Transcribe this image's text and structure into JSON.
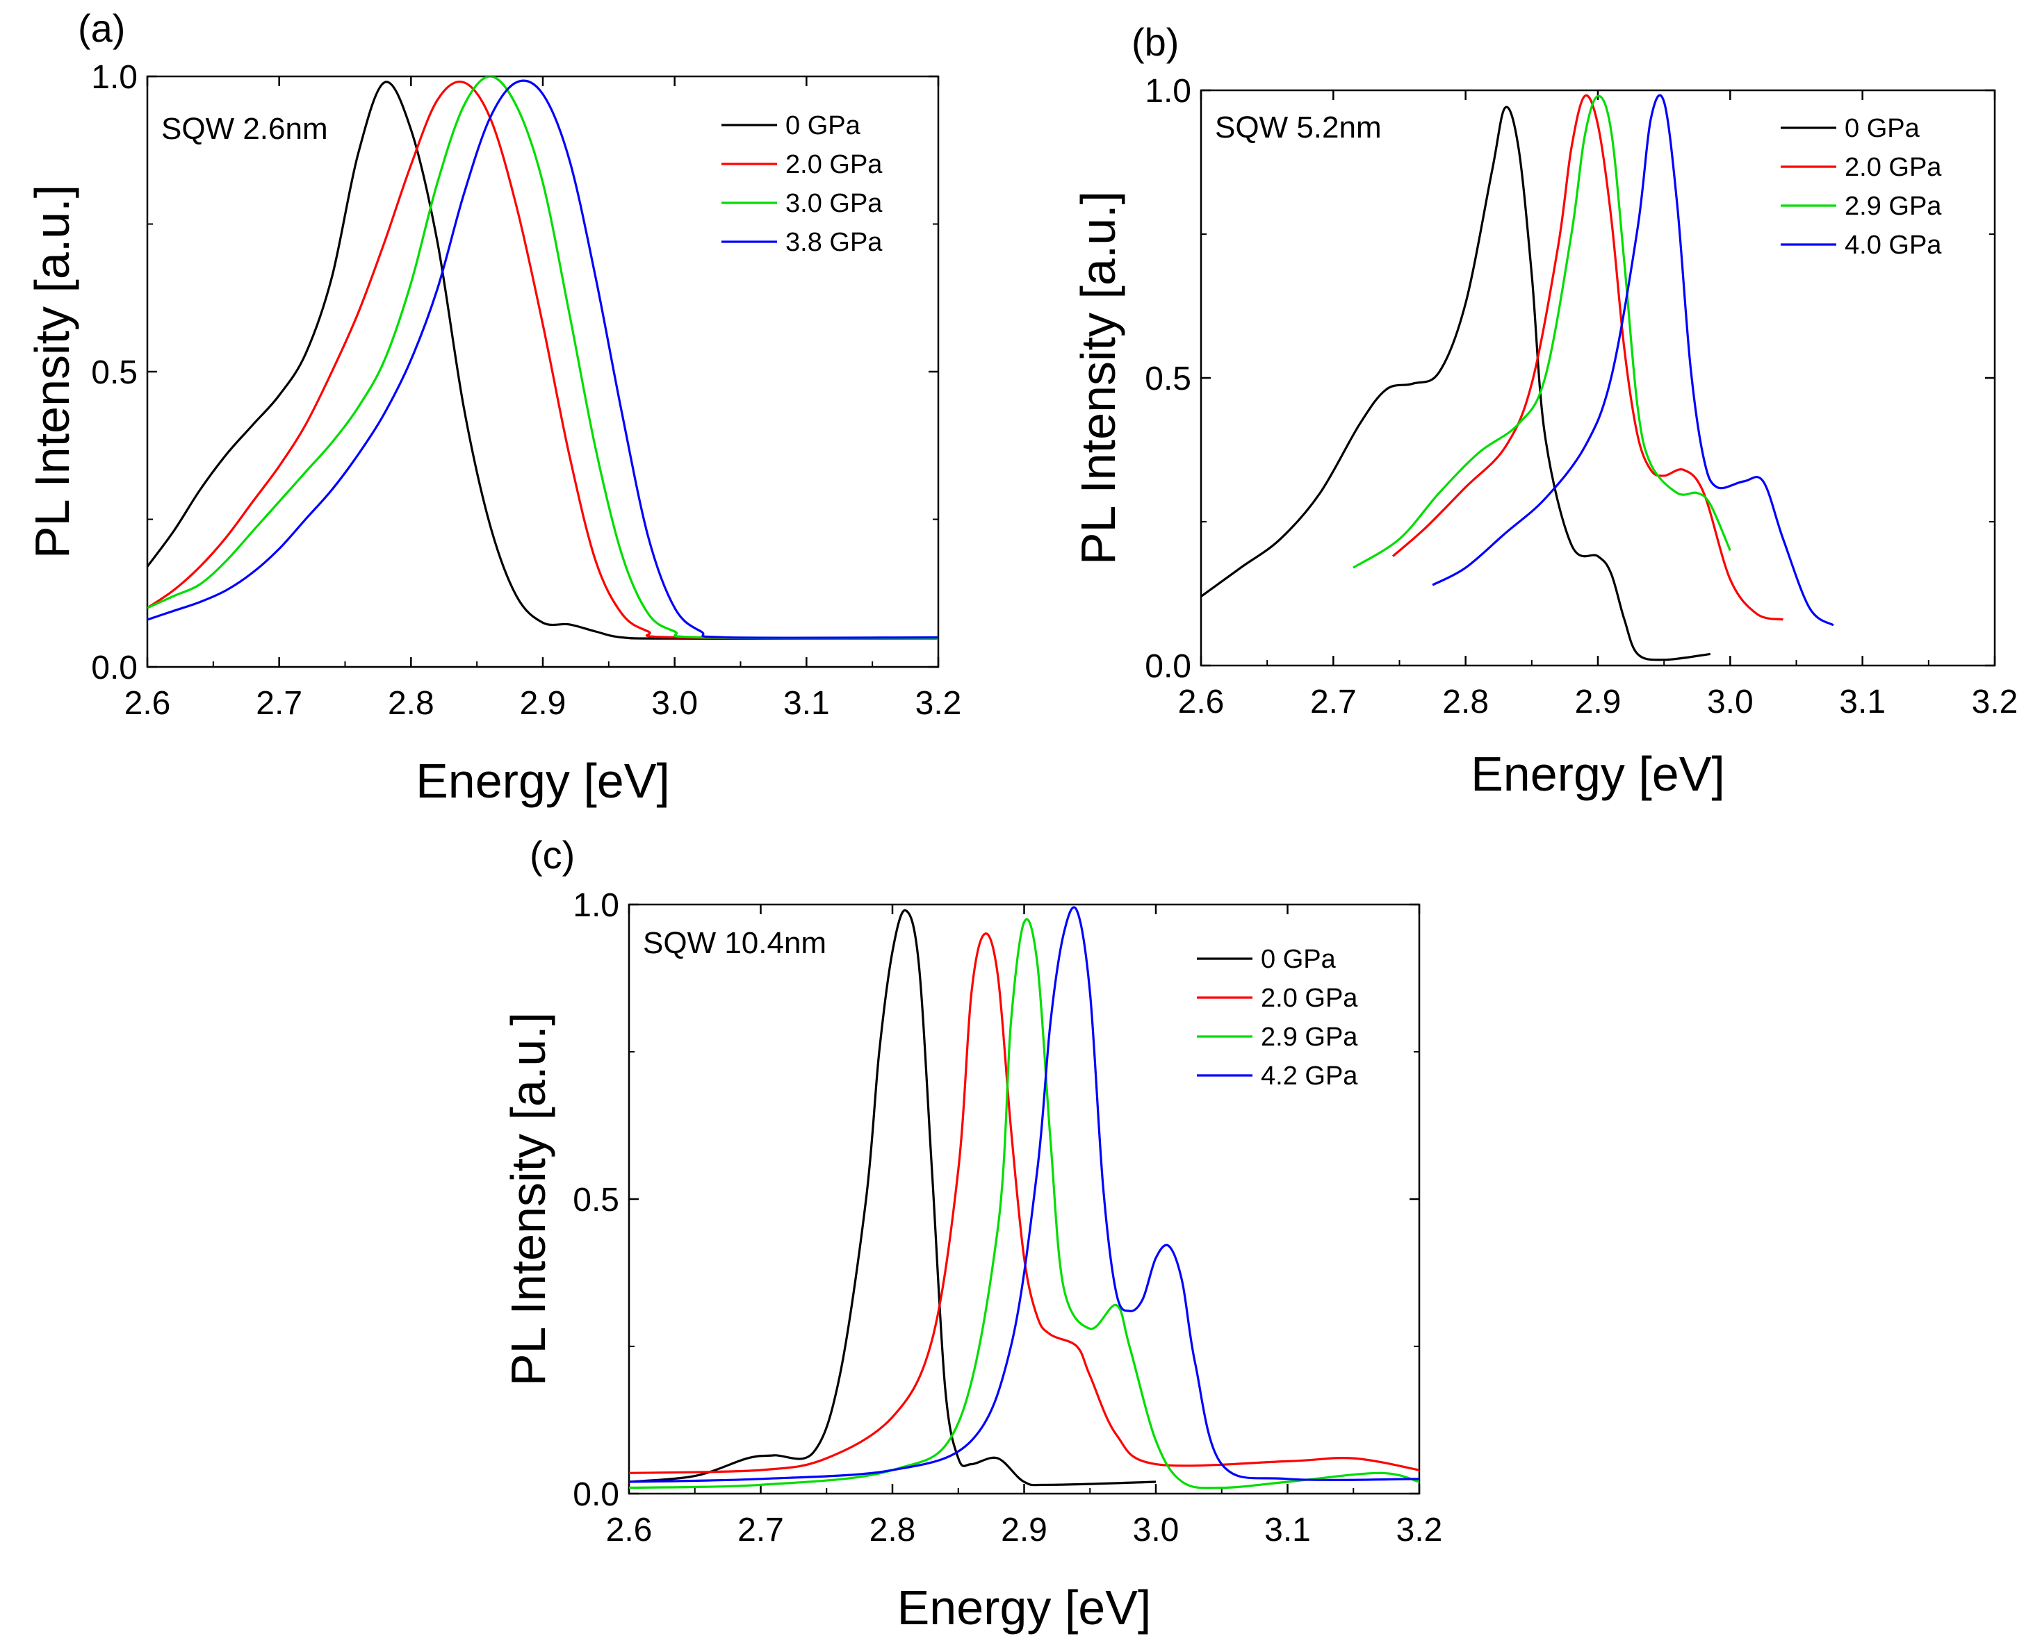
{
  "figure": {
    "panels": [
      {
        "label": "(a)",
        "annotation": "SQW 2.6nm",
        "chart_data": {
          "type": "line",
          "xlabel": "Energy [eV]",
          "ylabel": "PL Intensity [a.u.]",
          "xlim": [
            2.6,
            3.2
          ],
          "ylim": [
            0.0,
            1.0
          ],
          "xticks": [
            "2.6",
            "2.7",
            "2.8",
            "2.9",
            "3.0",
            "3.1",
            "3.2"
          ],
          "yticks": [
            "0.0",
            "0.5",
            "1.0"
          ],
          "legend_position": "top-right",
          "grid": false,
          "series": [
            {
              "name": "0    GPa",
              "color": "#000000",
              "x": [
                2.6,
                2.62,
                2.64,
                2.66,
                2.68,
                2.7,
                2.72,
                2.74,
                2.76,
                2.78,
                2.8,
                2.82,
                2.84,
                2.86,
                2.88,
                2.9,
                2.92,
                2.94,
                2.96,
                3.0,
                3.2
              ],
              "y": [
                0.17,
                0.23,
                0.3,
                0.36,
                0.41,
                0.46,
                0.53,
                0.66,
                0.87,
                0.99,
                0.91,
                0.72,
                0.44,
                0.24,
                0.12,
                0.075,
                0.072,
                0.06,
                0.05,
                0.048,
                0.048
              ]
            },
            {
              "name": "2.0  GPa",
              "color": "#ff0000",
              "x": [
                2.6,
                2.62,
                2.64,
                2.66,
                2.68,
                2.7,
                2.72,
                2.74,
                2.76,
                2.78,
                2.8,
                2.82,
                2.84,
                2.86,
                2.88,
                2.9,
                2.92,
                2.94,
                2.96,
                2.98,
                3.0,
                3.2
              ],
              "y": [
                0.1,
                0.13,
                0.17,
                0.22,
                0.28,
                0.34,
                0.41,
                0.5,
                0.6,
                0.72,
                0.85,
                0.96,
                0.99,
                0.93,
                0.78,
                0.58,
                0.36,
                0.18,
                0.09,
                0.06,
                0.05,
                0.048
              ]
            },
            {
              "name": "3.0  GPa",
              "color": "#00dd00",
              "x": [
                2.6,
                2.62,
                2.64,
                2.66,
                2.68,
                2.7,
                2.72,
                2.74,
                2.76,
                2.78,
                2.8,
                2.82,
                2.84,
                2.86,
                2.88,
                2.9,
                2.92,
                2.94,
                2.96,
                2.98,
                3.0,
                3.02,
                3.2
              ],
              "y": [
                0.1,
                0.12,
                0.14,
                0.18,
                0.23,
                0.28,
                0.33,
                0.38,
                0.44,
                0.52,
                0.65,
                0.82,
                0.95,
                1.0,
                0.95,
                0.82,
                0.6,
                0.37,
                0.19,
                0.09,
                0.06,
                0.05,
                0.048
              ]
            },
            {
              "name": "3.8 GPa",
              "color": "#0000ff",
              "x": [
                2.6,
                2.62,
                2.64,
                2.66,
                2.68,
                2.7,
                2.72,
                2.74,
                2.76,
                2.78,
                2.8,
                2.82,
                2.84,
                2.86,
                2.88,
                2.9,
                2.92,
                2.94,
                2.96,
                2.98,
                3.0,
                3.02,
                3.04,
                3.2
              ],
              "y": [
                0.08,
                0.095,
                0.11,
                0.13,
                0.16,
                0.2,
                0.25,
                0.3,
                0.36,
                0.43,
                0.52,
                0.64,
                0.8,
                0.93,
                0.99,
                0.97,
                0.86,
                0.66,
                0.43,
                0.22,
                0.1,
                0.06,
                0.05,
                0.05
              ]
            }
          ]
        }
      },
      {
        "label": "(b)",
        "annotation": "SQW 5.2nm",
        "chart_data": {
          "type": "line",
          "xlabel": "Energy [eV]",
          "ylabel": "PL Intensity [a.u.]",
          "xlim": [
            2.6,
            3.2
          ],
          "ylim": [
            0.0,
            1.0
          ],
          "xticks": [
            "2.6",
            "2.7",
            "2.8",
            "2.9",
            "3.0",
            "3.1",
            "3.2"
          ],
          "yticks": [
            "0.0",
            "0.5",
            "1.0"
          ],
          "legend_position": "top-right",
          "grid": false,
          "series": [
            {
              "name": "0    GPa",
              "color": "#000000",
              "x": [
                2.6,
                2.63,
                2.66,
                2.69,
                2.72,
                2.74,
                2.76,
                2.78,
                2.8,
                2.82,
                2.83,
                2.84,
                2.85,
                2.86,
                2.88,
                2.9,
                2.91,
                2.92,
                2.93,
                2.95,
                2.985
              ],
              "y": [
                0.12,
                0.17,
                0.22,
                0.3,
                0.42,
                0.48,
                0.49,
                0.51,
                0.63,
                0.86,
                0.97,
                0.9,
                0.68,
                0.4,
                0.21,
                0.19,
                0.16,
                0.08,
                0.02,
                0.01,
                0.02
              ]
            },
            {
              "name": "2.0 GPa",
              "color": "#ff0000",
              "x": [
                2.745,
                2.77,
                2.8,
                2.83,
                2.85,
                2.87,
                2.88,
                2.89,
                2.9,
                2.91,
                2.92,
                2.93,
                2.94,
                2.95,
                2.965,
                2.98,
                3.0,
                3.02,
                3.04
              ],
              "y": [
                0.19,
                0.24,
                0.31,
                0.38,
                0.49,
                0.73,
                0.9,
                0.99,
                0.94,
                0.78,
                0.55,
                0.4,
                0.34,
                0.33,
                0.34,
                0.3,
                0.15,
                0.09,
                0.08
              ]
            },
            {
              "name": "2.9 GPa",
              "color": "#00dd00",
              "x": [
                2.715,
                2.75,
                2.78,
                2.81,
                2.84,
                2.86,
                2.88,
                2.89,
                2.9,
                2.91,
                2.92,
                2.93,
                2.94,
                2.96,
                2.975,
                2.985,
                3.0
              ],
              "y": [
                0.17,
                0.22,
                0.3,
                0.37,
                0.42,
                0.5,
                0.75,
                0.92,
                0.99,
                0.93,
                0.7,
                0.45,
                0.35,
                0.3,
                0.3,
                0.28,
                0.2
              ]
            },
            {
              "name": "4.0 GPa",
              "color": "#0000ff",
              "x": [
                2.775,
                2.8,
                2.83,
                2.86,
                2.89,
                2.91,
                2.93,
                2.94,
                2.95,
                2.96,
                2.97,
                2.98,
                2.99,
                3.01,
                3.025,
                3.04,
                3.06,
                3.078
              ],
              "y": [
                0.14,
                0.17,
                0.23,
                0.29,
                0.38,
                0.5,
                0.76,
                0.95,
                0.98,
                0.8,
                0.52,
                0.36,
                0.31,
                0.32,
                0.32,
                0.22,
                0.1,
                0.07
              ]
            }
          ]
        }
      },
      {
        "label": "(c)",
        "annotation": "SQW 10.4nm",
        "chart_data": {
          "type": "line",
          "xlabel": "Energy [eV]",
          "ylabel": "PL Intensity [a.u.]",
          "xlim": [
            2.6,
            3.2
          ],
          "ylim": [
            0.0,
            1.0
          ],
          "xticks": [
            "2.6",
            "2.7",
            "2.8",
            "2.9",
            "3.0",
            "3.1",
            "3.2"
          ],
          "yticks": [
            "0.0",
            "0.5",
            "1.0"
          ],
          "legend_position": "top-right",
          "grid": false,
          "series": [
            {
              "name": "0    GPa",
              "color": "#000000",
              "x": [
                2.6,
                2.65,
                2.69,
                2.71,
                2.74,
                2.76,
                2.78,
                2.79,
                2.8,
                2.81,
                2.82,
                2.83,
                2.84,
                2.85,
                2.86,
                2.88,
                2.9,
                2.92,
                3.0
              ],
              "y": [
                0.02,
                0.03,
                0.06,
                0.065,
                0.07,
                0.2,
                0.5,
                0.75,
                0.92,
                0.99,
                0.9,
                0.55,
                0.18,
                0.06,
                0.05,
                0.06,
                0.02,
                0.015,
                0.02
              ]
            },
            {
              "name": "2.0 GPa",
              "color": "#ff0000",
              "x": [
                2.6,
                2.7,
                2.75,
                2.8,
                2.83,
                2.85,
                2.86,
                2.87,
                2.88,
                2.89,
                2.9,
                2.91,
                2.92,
                2.94,
                2.95,
                2.97,
                3.0,
                3.1,
                3.15,
                3.2
              ],
              "y": [
                0.035,
                0.04,
                0.06,
                0.13,
                0.26,
                0.55,
                0.85,
                0.95,
                0.88,
                0.62,
                0.4,
                0.3,
                0.27,
                0.25,
                0.2,
                0.1,
                0.05,
                0.055,
                0.06,
                0.04
              ]
            },
            {
              "name": "2.9 GPa",
              "color": "#00dd00",
              "x": [
                2.6,
                2.7,
                2.8,
                2.85,
                2.88,
                2.89,
                2.9,
                2.91,
                2.92,
                2.93,
                2.95,
                2.97,
                2.98,
                3.0,
                3.02,
                3.05,
                3.1,
                3.17,
                3.2
              ],
              "y": [
                0.01,
                0.015,
                0.04,
                0.12,
                0.45,
                0.8,
                0.97,
                0.9,
                0.6,
                0.35,
                0.28,
                0.32,
                0.25,
                0.09,
                0.02,
                0.01,
                0.02,
                0.035,
                0.02
              ]
            },
            {
              "name": "4.2 GPa",
              "color": "#0000ff",
              "x": [
                2.6,
                2.7,
                2.8,
                2.86,
                2.89,
                2.91,
                2.92,
                2.93,
                2.94,
                2.95,
                2.96,
                2.97,
                2.98,
                2.99,
                3.0,
                3.01,
                3.02,
                3.03,
                3.05,
                3.1,
                3.2
              ],
              "y": [
                0.02,
                0.025,
                0.04,
                0.09,
                0.25,
                0.55,
                0.8,
                0.95,
                0.99,
                0.85,
                0.52,
                0.34,
                0.31,
                0.33,
                0.4,
                0.42,
                0.36,
                0.22,
                0.05,
                0.025,
                0.025
              ]
            }
          ]
        }
      }
    ]
  }
}
